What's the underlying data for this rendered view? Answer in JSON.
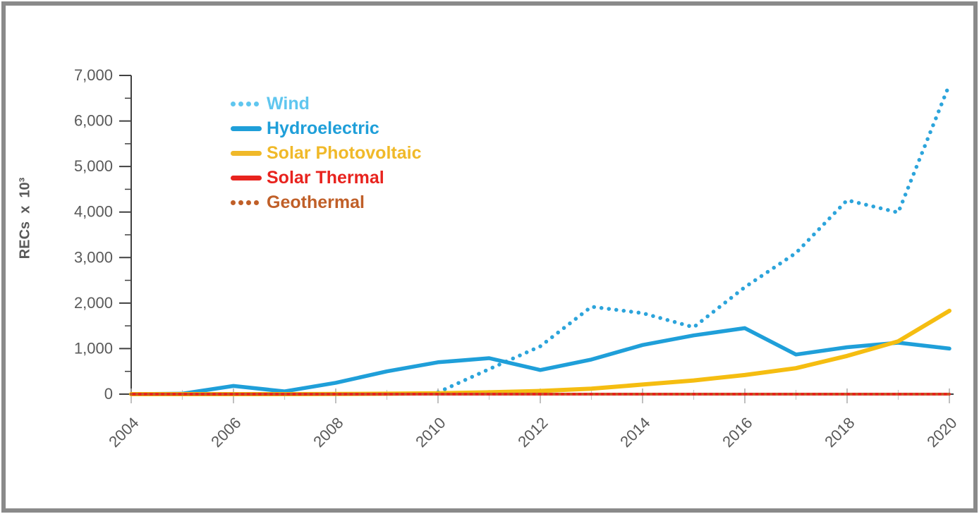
{
  "chart_data": {
    "type": "line",
    "title": "",
    "xlabel": "",
    "ylabel": "RECs  x  10³",
    "x": [
      2004,
      2005,
      2006,
      2007,
      2008,
      2009,
      2010,
      2011,
      2012,
      2013,
      2014,
      2015,
      2016,
      2017,
      2018,
      2019,
      2020
    ],
    "x_tick_labels": [
      "2004",
      "2006",
      "2008",
      "2010",
      "2012",
      "2014",
      "2016",
      "2018",
      "2020"
    ],
    "y_tick_labels": [
      "0",
      "1,000",
      "2,000",
      "3,000",
      "4,000",
      "5,000",
      "6,000",
      "7,000"
    ],
    "ylim": [
      0,
      7000
    ],
    "y_major_step": 1000,
    "y_minor_step": 500,
    "grid": false,
    "legend_position": "inside-upper-left",
    "axis_text_color": "#595959",
    "series": [
      {
        "name": "Wind",
        "style": "dotted",
        "color": "#2CA4DB",
        "legend_color": "#5FC6EF",
        "values": [
          null,
          null,
          null,
          null,
          null,
          null,
          40,
          550,
          1050,
          1920,
          1780,
          1470,
          2350,
          3100,
          4260,
          3990,
          6800
        ]
      },
      {
        "name": "Hydroelectric",
        "style": "solid",
        "color": "#1F9FD9",
        "legend_color": "#1F9FD9",
        "values": [
          0,
          10,
          180,
          60,
          250,
          500,
          700,
          790,
          530,
          760,
          1080,
          1290,
          1450,
          870,
          1030,
          1130,
          1000
        ]
      },
      {
        "name": "Solar Photovoltaic",
        "style": "solid",
        "color": "#F5BD11",
        "legend_color": "#F0B929",
        "values": [
          0,
          0,
          0,
          0,
          5,
          10,
          20,
          40,
          70,
          120,
          210,
          300,
          420,
          570,
          840,
          1160,
          1830
        ]
      },
      {
        "name": "Solar Thermal",
        "style": "solid",
        "color": "#E8231E",
        "legend_color": "#E8231E",
        "values": [
          0,
          0,
          0,
          0,
          0,
          0,
          0,
          0,
          0,
          0,
          0,
          0,
          0,
          0,
          0,
          0,
          0
        ]
      },
      {
        "name": "Geothermal",
        "style": "dotted",
        "color": "#C05F28",
        "legend_color": "#C05F28",
        "values": [
          0,
          0,
          0,
          0,
          0,
          0,
          0,
          0,
          0,
          0,
          0,
          0,
          0,
          0,
          0,
          0,
          0
        ]
      }
    ]
  }
}
